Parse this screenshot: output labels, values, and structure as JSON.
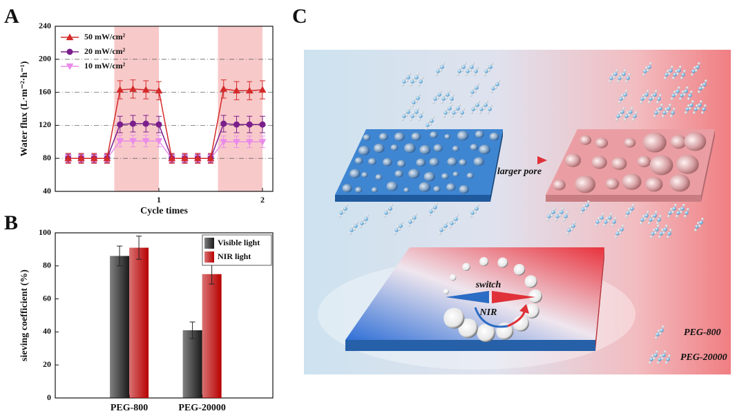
{
  "chart_data": [
    {
      "type": "line",
      "panel": "A",
      "x_label": "Cycle times",
      "y_label": "Water flux (L·m⁻²·h⁻¹)",
      "x": [
        0.125,
        0.25,
        0.375,
        0.5,
        0.625,
        0.75,
        0.875,
        1,
        1.125,
        1.25,
        1.375,
        1.5,
        1.625,
        1.75,
        1.875,
        2
      ],
      "xlim": [
        0,
        2.1
      ],
      "xticks": [
        1,
        2
      ],
      "ylim": [
        40,
        240
      ],
      "yticks": [
        40,
        80,
        120,
        160,
        200,
        240
      ],
      "grid": true,
      "legend": "upper left",
      "shaded_regions": [
        [
          0.57,
          1
        ],
        [
          1.57,
          2
        ]
      ],
      "shade_color": "#f8c9c9",
      "series": [
        {
          "name": "50 mW/cm²",
          "color": "#d42a2a",
          "marker": "triangle-up",
          "values": [
            80,
            80,
            80,
            80,
            163,
            164,
            163,
            162,
            80,
            80,
            80,
            80,
            164,
            162,
            162,
            163
          ],
          "errors": [
            6,
            6,
            6,
            6,
            11,
            11,
            11,
            11,
            6,
            6,
            6,
            6,
            11,
            11,
            11,
            11
          ]
        },
        {
          "name": "20 mW/cm²",
          "color": "#7a1f8c",
          "marker": "circle",
          "values": [
            80,
            80,
            80,
            80,
            121,
            122,
            122,
            121,
            80,
            80,
            80,
            80,
            122,
            121,
            121,
            121
          ],
          "errors": [
            5,
            5,
            5,
            5,
            10,
            10,
            10,
            10,
            5,
            5,
            5,
            5,
            10,
            10,
            10,
            10
          ]
        },
        {
          "name": "10 mW/cm²",
          "color": "#e98ce9",
          "marker": "triangle-down",
          "values": [
            80,
            80,
            80,
            80,
            101,
            101,
            101,
            101,
            80,
            80,
            80,
            80,
            100,
            100,
            100,
            100
          ],
          "errors": [
            4,
            4,
            4,
            4,
            7,
            7,
            7,
            7,
            4,
            4,
            4,
            4,
            7,
            7,
            7,
            7
          ]
        }
      ]
    },
    {
      "type": "bar",
      "panel": "B",
      "y_label": "sieving coefficient (%)",
      "categories": [
        "PEG-800",
        "PEG-20000"
      ],
      "ylim": [
        0,
        100
      ],
      "yticks": [
        0,
        20,
        40,
        60,
        80,
        100
      ],
      "legend": "upper right",
      "series": [
        {
          "name": "Visible light",
          "color": "#1a1a1a",
          "values": [
            86,
            41
          ],
          "errors": [
            6,
            5
          ]
        },
        {
          "name": "NIR light",
          "color": "#b80000",
          "values": [
            91,
            75
          ],
          "errors": [
            7,
            6
          ]
        }
      ]
    }
  ],
  "diagram": {
    "panel": "C",
    "arrow_label": "larger pore",
    "switch_label": "switch",
    "stimulus_label": "NIR",
    "legend": [
      "PEG-800",
      "PEG-20000"
    ]
  }
}
